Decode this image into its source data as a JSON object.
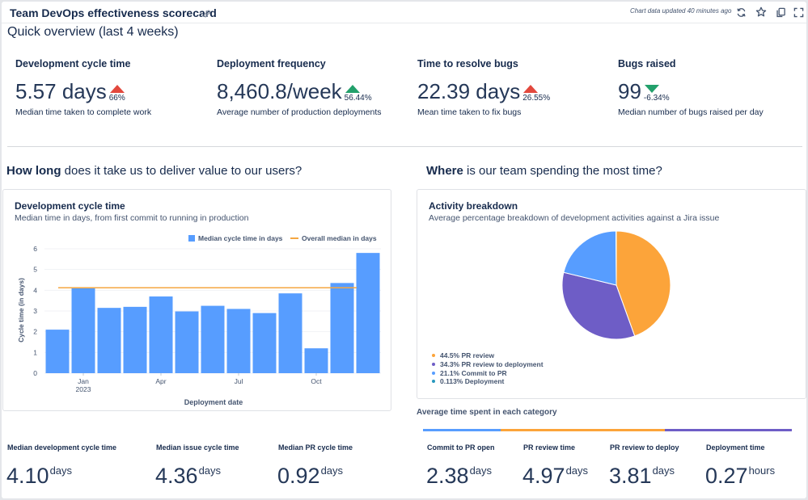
{
  "header": {
    "title": "Team DevOps effectiveness scorecard",
    "updated": "Chart data updated 40 minutes ago",
    "icons": [
      "link-icon",
      "refresh-icon",
      "star-icon",
      "copy-icon",
      "fullscreen-icon"
    ]
  },
  "overview_title": "Quick overview (last 4 weeks)",
  "kpis": [
    {
      "label": "Development cycle time",
      "value": "5.57 days",
      "delta": "66%",
      "direction": "up",
      "color": "#e2483d",
      "desc": "Median time taken to complete work"
    },
    {
      "label": "Deployment frequency",
      "value": "8,460.8/week",
      "delta": "56.44%",
      "direction": "up",
      "color": "#22a06b",
      "desc": "Average number of production deployments"
    },
    {
      "label": "Time to resolve bugs",
      "value": "22.39 days",
      "delta": "26.55%",
      "direction": "up",
      "color": "#e2483d",
      "desc": "Mean time taken to fix bugs"
    },
    {
      "label": "Bugs raised",
      "value": "99",
      "delta": "-6.34%",
      "direction": "down",
      "color": "#22a06b",
      "desc": "Median number of bugs raised per day"
    }
  ],
  "section_left": {
    "bold": "How long",
    "rest": " does it take us to deliver value to our users?"
  },
  "section_right": {
    "bold": "Where",
    "rest": " is our team spending the most time?"
  },
  "chart_data": [
    {
      "type": "bar",
      "title": "Development cycle time",
      "subtitle": "Median time in days, from first commit to running in production",
      "xlabel": "Deployment date",
      "ylabel": "Cycle time (in days)",
      "ylim": [
        0,
        6
      ],
      "yticks": [
        "0",
        "1",
        "2",
        "3",
        "4",
        "5",
        "6"
      ],
      "xticks": [
        {
          "label": "Jan",
          "sub": "2023",
          "index": 1
        },
        {
          "label": "Apr",
          "sub": "",
          "index": 4
        },
        {
          "label": "Jul",
          "sub": "",
          "index": 7
        },
        {
          "label": "Oct",
          "sub": "",
          "index": 10
        }
      ],
      "values": [
        2.1,
        4.1,
        3.15,
        3.2,
        3.7,
        2.98,
        3.25,
        3.1,
        2.9,
        3.85,
        1.2,
        4.35,
        5.8
      ],
      "series": [
        {
          "name": "Median cycle time in days",
          "color": "#579dff"
        },
        {
          "name": "Overall median in days",
          "color": "#f5a742",
          "value": 4.12
        }
      ],
      "legend_position": "top-right"
    },
    {
      "type": "pie",
      "title": "Activity breakdown",
      "subtitle": "Average percentage breakdown of development activities against a Jira issue",
      "slices": [
        {
          "label": "44.5% PR review",
          "value": 44.5,
          "color": "#fca43a"
        },
        {
          "label": "34.3% PR review to deployment",
          "value": 34.3,
          "color": "#6e5dc6"
        },
        {
          "label": "21.1% Commit to PR",
          "value": 21.1,
          "color": "#579dff"
        },
        {
          "label": "0.113% Deployment",
          "value": 0.113,
          "color": "#2898bd"
        }
      ]
    }
  ],
  "left_stats": [
    {
      "label": "Median development cycle time",
      "num": "4.10",
      "unit": "days"
    },
    {
      "label": "Median issue cycle time",
      "num": "4.36",
      "unit": "days"
    },
    {
      "label": "Median PR cycle time",
      "num": "0.92",
      "unit": "days"
    }
  ],
  "avg_title": "Average time spent in each category",
  "segments": [
    {
      "color": "#579dff",
      "share": 21.1
    },
    {
      "color": "#fca43a",
      "share": 44.5
    },
    {
      "color": "#6e5dc6",
      "share": 34.3
    }
  ],
  "right_stats": [
    {
      "label": "Commit to PR open",
      "num": "2.38",
      "unit": "days"
    },
    {
      "label": "PR review time",
      "num": "4.97",
      "unit": "days"
    },
    {
      "label": "PR review to deploy",
      "num": "3.81",
      "unit": "days"
    },
    {
      "label": "Deployment time",
      "num": "0.27",
      "unit": "hours"
    }
  ]
}
